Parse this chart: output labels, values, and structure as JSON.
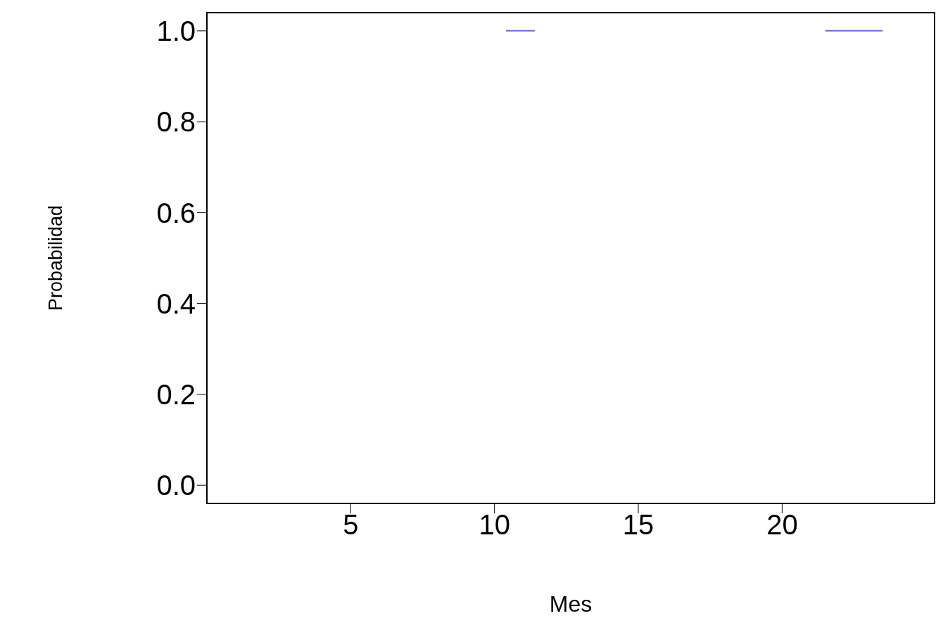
{
  "chart_data": {
    "type": "line",
    "xlabel": "Mes",
    "ylabel": "Probabilidad",
    "x": [
      10.4,
      11.4,
      11.45,
      21.5,
      23.5
    ],
    "series": [
      {
        "color": "#6a6ad8",
        "values": [
          1,
          1,
          null,
          1,
          1
        ]
      }
    ],
    "xlim": [
      0,
      25.3
    ],
    "xticks": [
      5,
      10,
      15,
      20
    ],
    "ylim": [
      -0.04,
      1.04
    ],
    "yticks": [
      {
        "value": 0,
        "label": "0.0"
      },
      {
        "value": 0.2,
        "label": "0.2"
      },
      {
        "value": 0.4,
        "label": "0.4"
      },
      {
        "value": 0.6,
        "label": "0.6"
      },
      {
        "value": 0.8,
        "label": "0.8"
      },
      {
        "value": 1,
        "label": "1.0"
      }
    ],
    "grid": false,
    "marker": "none",
    "line_style": "solid"
  }
}
